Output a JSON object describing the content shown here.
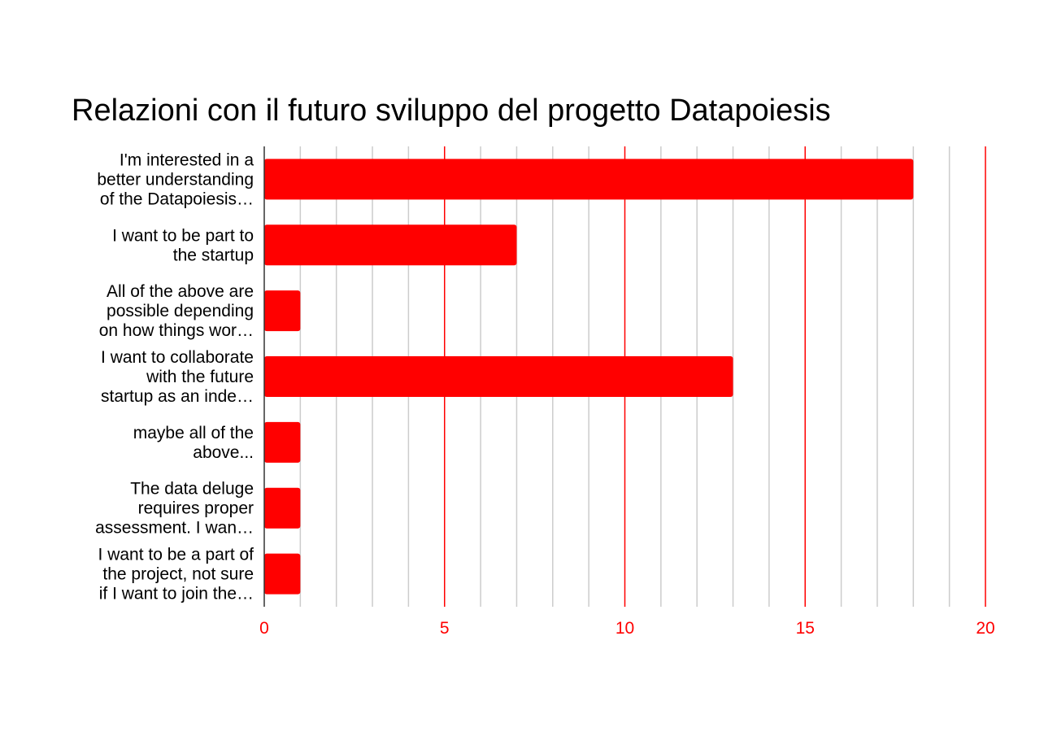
{
  "chart_data": {
    "type": "bar",
    "orientation": "horizontal",
    "title": "Relazioni con il futuro sviluppo del progetto Datapoiesis",
    "xlabel": "",
    "ylabel": "",
    "categories": [
      [
        "I'm interested in a",
        "better understanding",
        "of the Datapoiesis…"
      ],
      [
        "I want to be part to",
        "the startup"
      ],
      [
        "All of the above are",
        "possible depending",
        "on how things wor…"
      ],
      [
        "I want to collaborate",
        "with the future",
        "startup as an inde…"
      ],
      [
        "maybe all of the",
        "above..."
      ],
      [
        "The data deluge",
        "requires proper",
        "assessment. I wan…"
      ],
      [
        "I want to be a part of",
        "the project, not sure",
        "if I want to join the…"
      ]
    ],
    "values": [
      18,
      7,
      1,
      13,
      1,
      1,
      1
    ],
    "xlim": [
      0,
      20
    ],
    "major_ticks": [
      0,
      5,
      10,
      15,
      20
    ],
    "minor_tick_step": 1,
    "grid": true,
    "legend": "none",
    "colors": {
      "bar": "#ff0000",
      "major_grid": "#ff0000",
      "minor_grid": "#cccccc",
      "tick_label": "#ff0000",
      "axis": "#333333"
    }
  }
}
